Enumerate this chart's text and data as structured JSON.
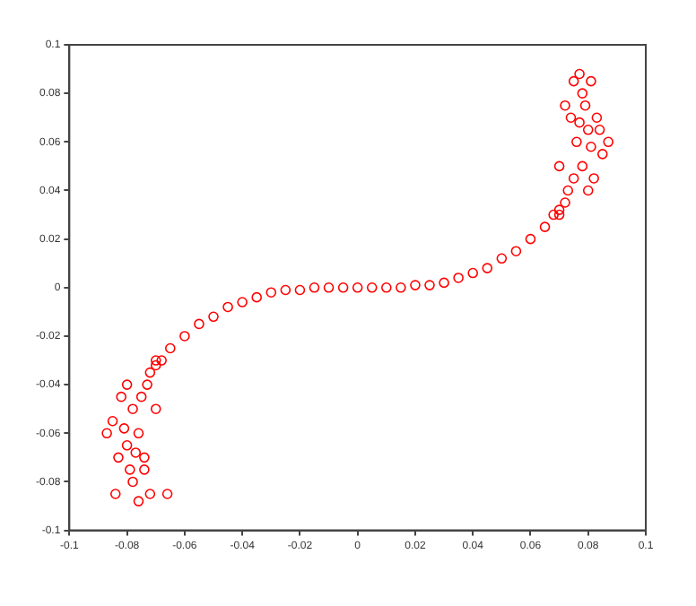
{
  "chart_data": {
    "type": "scatter",
    "marker": "circle",
    "grid": false,
    "xlim": [
      -0.1,
      0.1
    ],
    "ylim": [
      -0.1,
      0.1
    ],
    "xticks": [
      -0.1,
      -0.08,
      -0.06,
      -0.04,
      -0.02,
      0,
      0.02,
      0.04,
      0.06,
      0.08,
      0.1
    ],
    "yticks": [
      -0.1,
      -0.08,
      -0.06,
      -0.04,
      -0.02,
      0,
      0.02,
      0.04,
      0.06,
      0.08,
      0.1
    ],
    "series": [
      {
        "color": "#ff0000",
        "x": [
          -0.07,
          -0.065,
          -0.06,
          -0.055,
          -0.05,
          -0.045,
          -0.04,
          -0.035,
          -0.03,
          -0.025,
          -0.02,
          -0.015,
          -0.01,
          -0.005,
          0,
          0.005,
          0.01,
          0.015,
          0.02,
          0.025,
          0.03,
          0.035,
          0.04,
          0.045,
          0.05,
          0.055,
          0.06,
          0.065,
          0.07,
          -0.085,
          -0.083,
          -0.08,
          -0.078,
          -0.076,
          -0.074,
          -0.072,
          -0.07,
          -0.087,
          -0.082,
          -0.08,
          -0.078,
          -0.076,
          -0.075,
          -0.073,
          -0.072,
          -0.07,
          -0.068,
          -0.074,
          -0.079,
          -0.084,
          -0.066,
          -0.081,
          -0.077,
          0.085,
          0.083,
          0.08,
          0.078,
          0.077,
          0.075,
          0.072,
          0.07,
          0.087,
          0.082,
          0.08,
          0.078,
          0.076,
          0.075,
          0.073,
          0.072,
          0.07,
          0.068,
          0.074,
          0.079,
          0.081,
          0.084,
          0.081,
          0.077
        ],
        "values": [
          -0.032,
          -0.025,
          -0.02,
          -0.015,
          -0.012,
          -0.008,
          -0.006,
          -0.004,
          -0.002,
          -0.001,
          -0.001,
          0,
          0,
          0,
          0,
          0,
          0,
          0,
          0.001,
          0.001,
          0.002,
          0.004,
          0.006,
          0.008,
          0.012,
          0.015,
          0.02,
          0.025,
          0.032,
          -0.055,
          -0.07,
          -0.065,
          -0.08,
          -0.088,
          -0.075,
          -0.085,
          -0.05,
          -0.06,
          -0.045,
          -0.04,
          -0.05,
          -0.06,
          -0.045,
          -0.04,
          -0.035,
          -0.03,
          -0.03,
          -0.07,
          -0.075,
          -0.085,
          -0.085,
          -0.058,
          -0.068,
          0.055,
          0.07,
          0.065,
          0.08,
          0.088,
          0.085,
          0.075,
          0.05,
          0.06,
          0.045,
          0.04,
          0.05,
          0.06,
          0.045,
          0.04,
          0.035,
          0.03,
          0.03,
          0.07,
          0.075,
          0.085,
          0.065,
          0.058,
          0.068
        ]
      }
    ]
  }
}
